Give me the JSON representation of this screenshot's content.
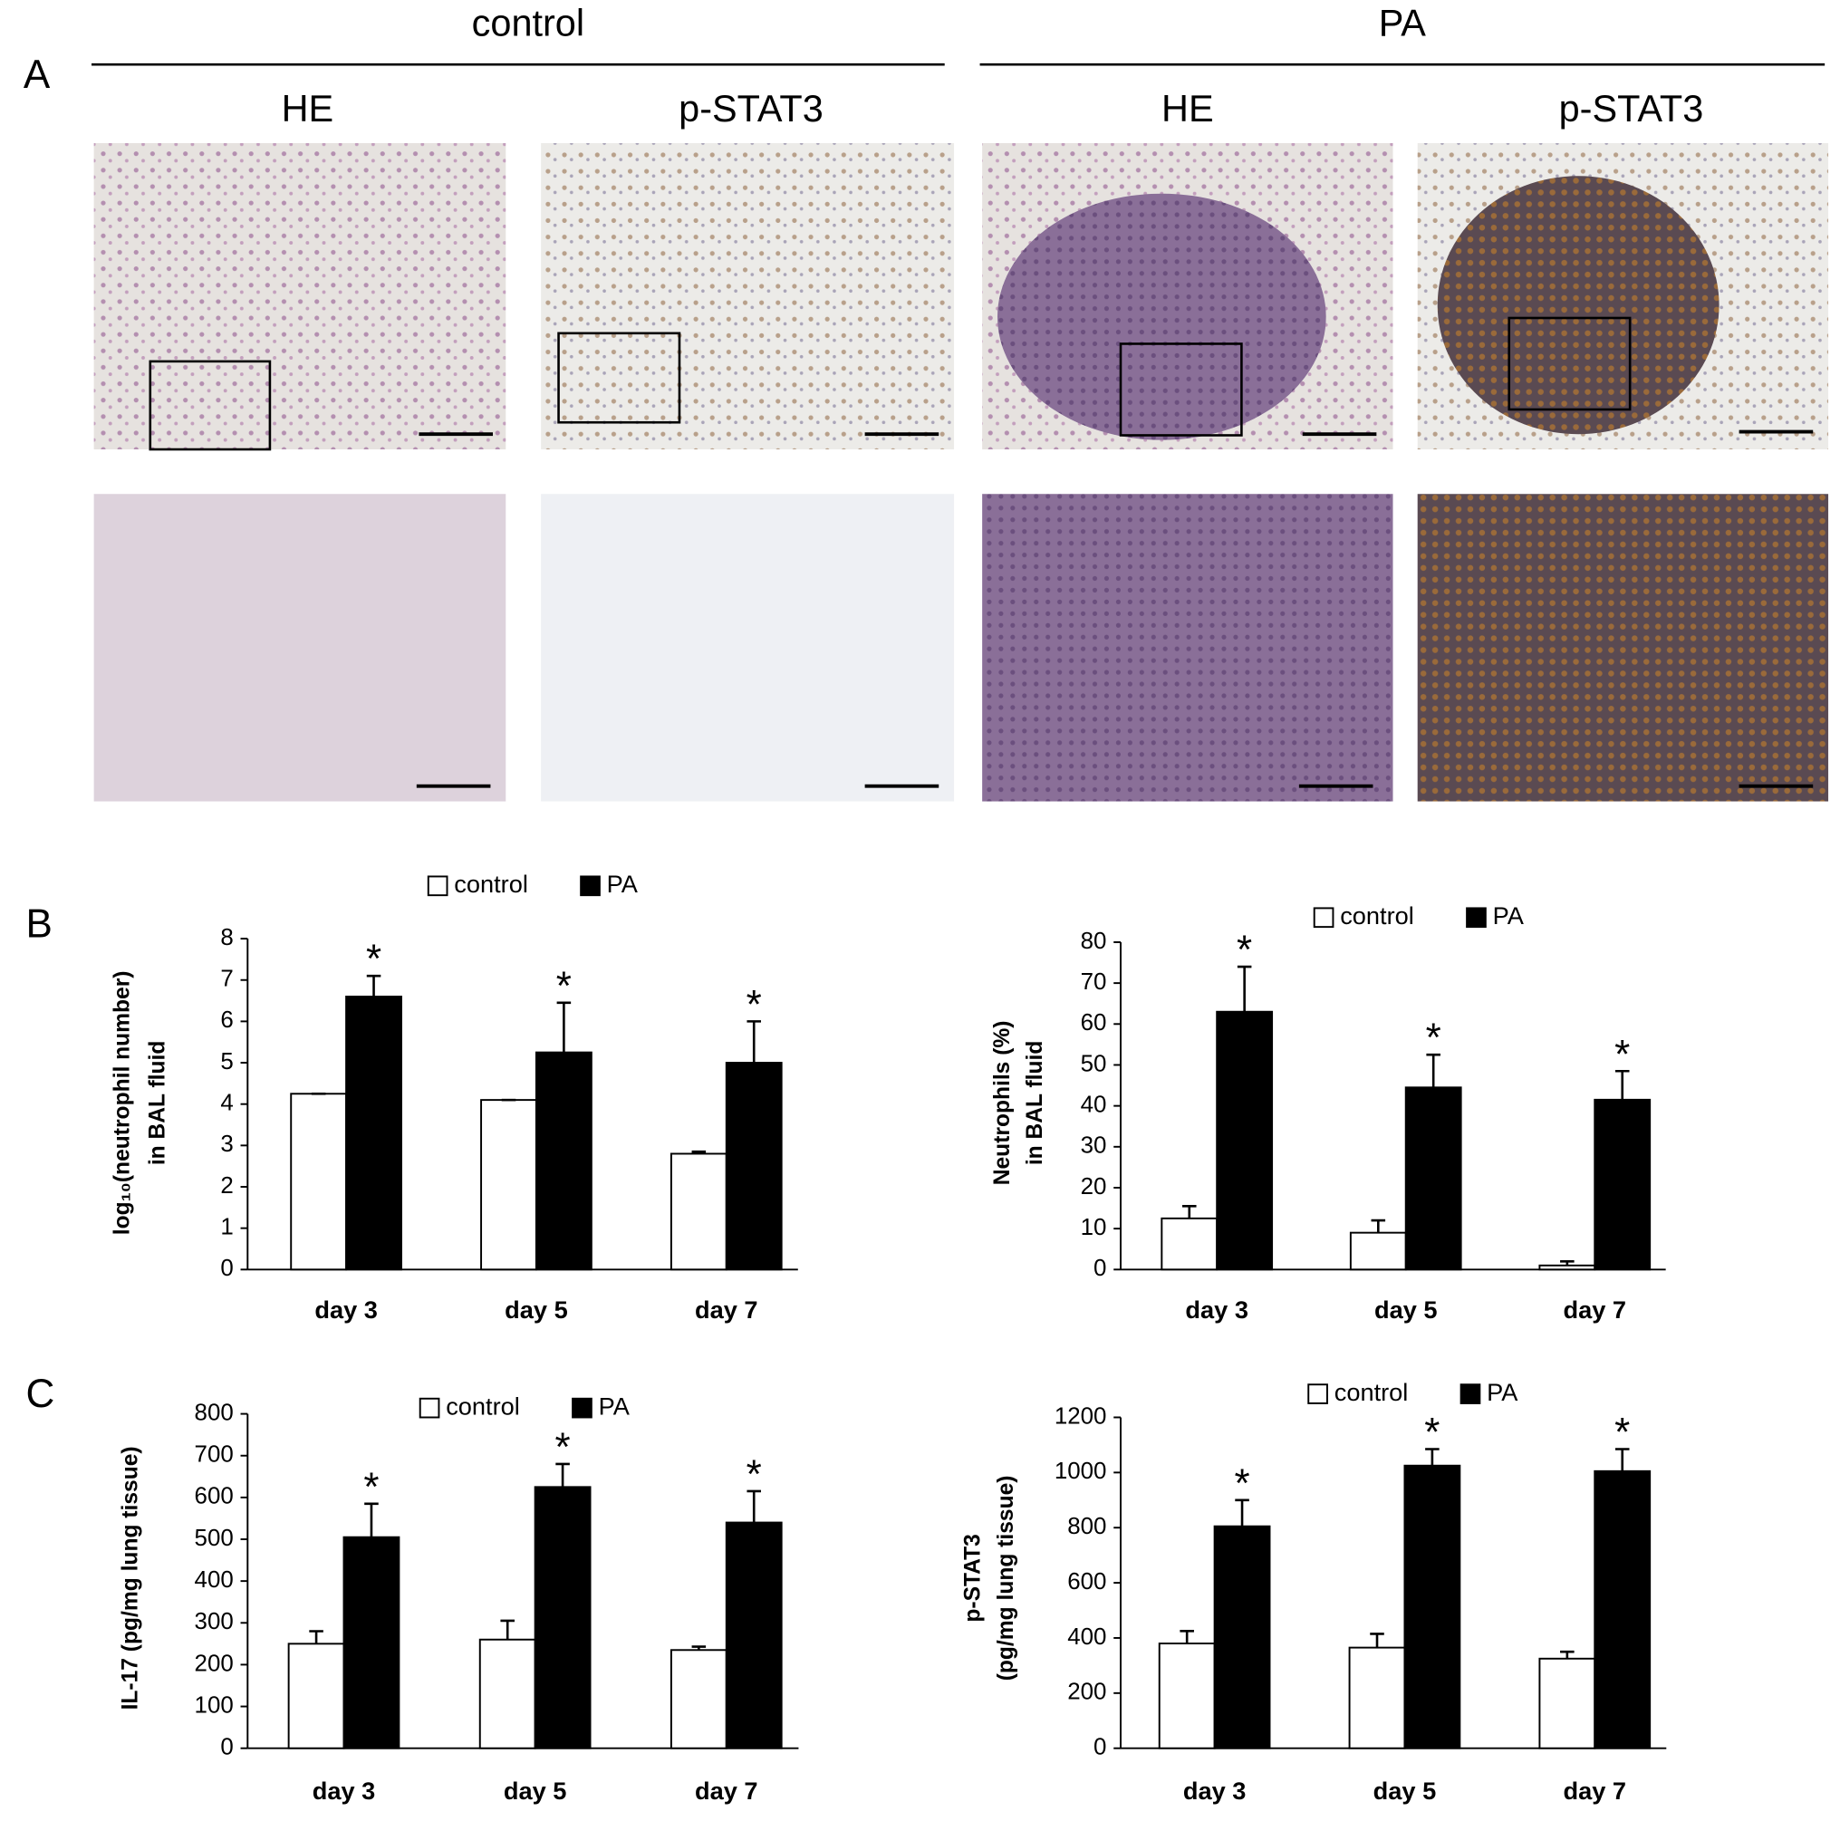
{
  "figure": {
    "panel_labels": [
      "A",
      "B",
      "C"
    ],
    "group_labels": [
      "control",
      "PA"
    ],
    "stain_labels": [
      "HE",
      "p-STAT3",
      "HE",
      "p-STAT3"
    ]
  },
  "chart_data": [
    {
      "type": "bar",
      "ylabel": [
        "log₁₀(neutrophil number)",
        "in BAL fluid"
      ],
      "categories": [
        "day 3",
        "day 5",
        "day 7"
      ],
      "series": [
        {
          "name": "control",
          "color": "#ffffff",
          "values": [
            4.25,
            4.1,
            2.8
          ],
          "errors": [
            0,
            0,
            0.05
          ]
        },
        {
          "name": "PA",
          "color": "#000000",
          "values": [
            6.6,
            5.25,
            5.0
          ],
          "errors": [
            0.5,
            1.2,
            1.0
          ],
          "significance": [
            "*",
            "*",
            "*"
          ]
        }
      ],
      "ylim": [
        0,
        8
      ],
      "yticks": [
        0,
        1,
        2,
        3,
        4,
        5,
        6,
        7,
        8
      ],
      "legend": "top"
    },
    {
      "type": "bar",
      "ylabel": [
        "Neutrophils (%)",
        "in BAL fluid"
      ],
      "categories": [
        "day 3",
        "day 5",
        "day 7"
      ],
      "series": [
        {
          "name": "control",
          "color": "#ffffff",
          "values": [
            12.5,
            9,
            1
          ],
          "errors": [
            3,
            3,
            1
          ]
        },
        {
          "name": "PA",
          "color": "#000000",
          "values": [
            63,
            44.5,
            41.5
          ],
          "errors": [
            11,
            8,
            7
          ],
          "significance": [
            "*",
            "*",
            "*"
          ]
        }
      ],
      "ylim": [
        0,
        80
      ],
      "yticks": [
        0,
        10,
        20,
        30,
        40,
        50,
        60,
        70,
        80
      ],
      "legend": "top"
    },
    {
      "type": "bar",
      "ylabel": [
        "IL-17 (pg/mg lung tissue)"
      ],
      "categories": [
        "day 3",
        "day 5",
        "day 7"
      ],
      "series": [
        {
          "name": "control",
          "color": "#ffffff",
          "values": [
            250,
            260,
            235
          ],
          "errors": [
            30,
            45,
            8
          ]
        },
        {
          "name": "PA",
          "color": "#000000",
          "values": [
            505,
            625,
            540
          ],
          "errors": [
            80,
            55,
            75
          ],
          "significance": [
            "*",
            "*",
            "*"
          ]
        }
      ],
      "ylim": [
        0,
        800
      ],
      "yticks": [
        0,
        100,
        200,
        300,
        400,
        500,
        600,
        700,
        800
      ],
      "legend": "top"
    },
    {
      "type": "bar",
      "ylabel": [
        "p-STAT3",
        "(pg/mg lung tissue)"
      ],
      "categories": [
        "day 3",
        "day 5",
        "day 7"
      ],
      "series": [
        {
          "name": "control",
          "color": "#ffffff",
          "values": [
            380,
            365,
            325
          ],
          "errors": [
            45,
            50,
            25
          ]
        },
        {
          "name": "PA",
          "color": "#000000",
          "values": [
            805,
            1025,
            1005
          ],
          "errors": [
            95,
            60,
            80
          ],
          "significance": [
            "*",
            "*",
            "*"
          ]
        }
      ],
      "ylim": [
        0,
        1200
      ],
      "yticks": [
        0,
        200,
        400,
        600,
        800,
        1000,
        1200
      ],
      "legend": "top"
    }
  ]
}
